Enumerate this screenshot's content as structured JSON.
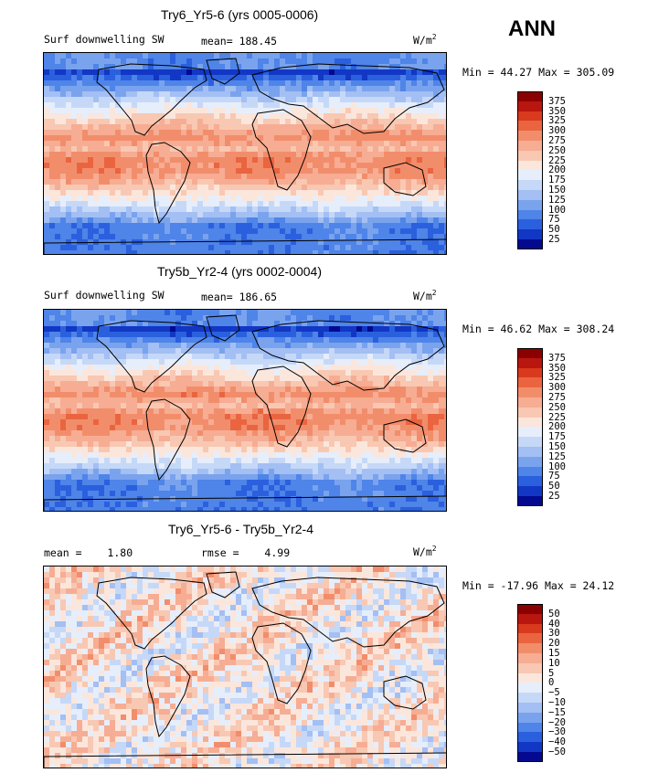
{
  "season": "ANN",
  "units_base": "W/m",
  "units_exp": "2",
  "panels": [
    {
      "title": "Try6_Yr5-6 (yrs 0005-0006)",
      "variable": "Surf downwelling SW",
      "stat1_label": "mean=",
      "stat1_value": "188.45",
      "minmax": "Min =  44.27 Max = 305.09",
      "type": "abs"
    },
    {
      "title": "Try5b_Yr2-4 (yrs 0002-0004)",
      "variable": "Surf downwelling SW",
      "stat1_label": "mean=",
      "stat1_value": "186.65",
      "minmax": "Min =  46.62 Max = 308.24",
      "type": "abs"
    },
    {
      "title": "Try6_Yr5-6 - Try5b_Yr2-4",
      "stat1_label": "mean =",
      "stat1_value": "1.80",
      "stat2_label": "rmse =",
      "stat2_value": "4.99",
      "minmax": "Min = -17.96 Max =  24.12",
      "type": "diff"
    }
  ],
  "chart_data": [
    {
      "type": "heatmap",
      "title": "Try6_Yr5-6 (yrs 0005-0006)",
      "field": "Surf downwelling SW",
      "mean": 188.45,
      "min": 44.27,
      "max": 305.09,
      "contour_levels": [
        25,
        50,
        75,
        100,
        125,
        150,
        175,
        200,
        225,
        250,
        275,
        300,
        325,
        350,
        375
      ]
    },
    {
      "type": "heatmap",
      "title": "Try5b_Yr2-4 (yrs 0002-0004)",
      "field": "Surf downwelling SW",
      "mean": 186.65,
      "min": 46.62,
      "max": 308.24,
      "contour_levels": [
        25,
        50,
        75,
        100,
        125,
        150,
        175,
        200,
        225,
        250,
        275,
        300,
        325,
        350,
        375
      ]
    },
    {
      "type": "heatmap",
      "title": "Try6_Yr5-6 - Try5b_Yr2-4",
      "mean": 1.8,
      "rmse": 4.99,
      "min": -17.96,
      "max": 24.12,
      "contour_levels": [
        -50,
        -40,
        -30,
        -20,
        -15,
        -10,
        -5,
        0,
        5,
        10,
        15,
        20,
        30,
        40,
        50
      ]
    }
  ],
  "colorbar_abs": {
    "labels": [
      "375",
      "350",
      "325",
      "300",
      "275",
      "250",
      "225",
      "200",
      "175",
      "150",
      "125",
      "100",
      "75",
      "50",
      "25"
    ],
    "colors": [
      "#8b0000",
      "#b8160e",
      "#d93a1e",
      "#ea6440",
      "#f28d6b",
      "#f6ad93",
      "#f8c8b3",
      "#fbe6dc",
      "#e6eefb",
      "#c6d8f7",
      "#a3bff3",
      "#7aa3ee",
      "#4f84e8",
      "#2a60de",
      "#1237c4",
      "#030a8f"
    ]
  },
  "colorbar_diff": {
    "labels": [
      "50",
      "40",
      "30",
      "20",
      "15",
      "10",
      "5",
      "0",
      "−5",
      "−10",
      "−15",
      "−20",
      "−30",
      "−40",
      "−50"
    ],
    "colors": [
      "#8b0000",
      "#b8160e",
      "#d93a1e",
      "#ea6440",
      "#f28d6b",
      "#f6ad93",
      "#f8c8b3",
      "#fbe6dc",
      "#e6eefb",
      "#c6d8f7",
      "#a3bff3",
      "#7aa3ee",
      "#4f84e8",
      "#2a60de",
      "#1237c4",
      "#030a8f"
    ]
  }
}
